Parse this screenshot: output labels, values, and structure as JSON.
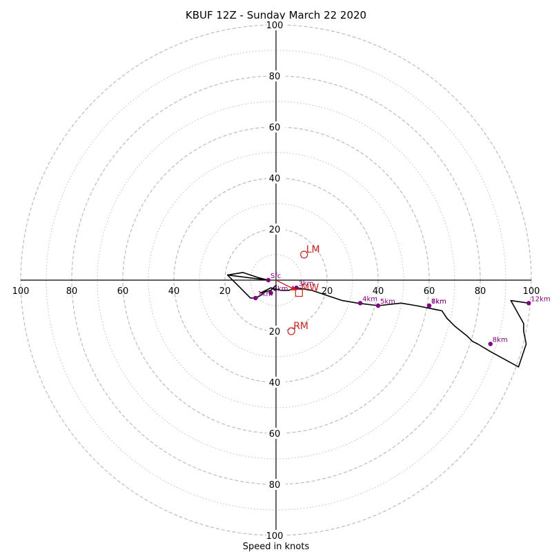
{
  "chart_data": {
    "type": "hodograph",
    "title": "KBUF 12Z - Sunday March 22 2020",
    "xlabel": "Speed in knots",
    "range": [
      -100,
      100
    ],
    "rings_major": [
      20,
      40,
      60,
      80,
      100
    ],
    "rings_minor": [
      10,
      30,
      50,
      70,
      90
    ],
    "tick_labels": {
      "x": [
        "100",
        "80",
        "60",
        "40",
        "20",
        "20",
        "40",
        "60",
        "80",
        "100"
      ],
      "y": [
        "100",
        "80",
        "60",
        "40",
        "20",
        "20",
        "40",
        "60",
        "80",
        "100"
      ]
    },
    "trace": [
      {
        "x": -3,
        "y": 0
      },
      {
        "x": -19,
        "y": 2
      },
      {
        "x": -13,
        "y": 3
      },
      {
        "x": -7,
        "y": 1
      },
      {
        "x": -3,
        "y": 0
      },
      {
        "x": -19,
        "y": 2
      },
      {
        "x": -14,
        "y": -3
      },
      {
        "x": -13,
        "y": -4
      },
      {
        "x": -10,
        "y": -7
      },
      {
        "x": -8,
        "y": -7
      },
      {
        "x": -6,
        "y": -6
      },
      {
        "x": -4,
        "y": -4
      },
      {
        "x": -2,
        "y": -3
      },
      {
        "x": 0,
        "y": -4
      },
      {
        "x": 0,
        "y": -2
      },
      {
        "x": -2,
        "y": -4
      },
      {
        "x": -6,
        "y": -5
      },
      {
        "x": -2,
        "y": -3
      },
      {
        "x": 2,
        "y": -4
      },
      {
        "x": 5,
        "y": -4
      },
      {
        "x": 8,
        "y": -3
      },
      {
        "x": 14,
        "y": -4
      },
      {
        "x": 20,
        "y": -6
      },
      {
        "x": 26,
        "y": -8
      },
      {
        "x": 32,
        "y": -9
      },
      {
        "x": 40,
        "y": -10
      },
      {
        "x": 49,
        "y": -9
      },
      {
        "x": 55,
        "y": -10
      },
      {
        "x": 60,
        "y": -11
      },
      {
        "x": 65,
        "y": -12
      },
      {
        "x": 67,
        "y": -15
      },
      {
        "x": 70,
        "y": -18
      },
      {
        "x": 75,
        "y": -22
      },
      {
        "x": 77,
        "y": -24
      },
      {
        "x": 79,
        "y": -25
      },
      {
        "x": 84,
        "y": -28
      },
      {
        "x": 95,
        "y": -34
      },
      {
        "x": 98,
        "y": -25
      },
      {
        "x": 97,
        "y": -20
      },
      {
        "x": 97,
        "y": -17
      },
      {
        "x": 92,
        "y": -8
      },
      {
        "x": 99,
        "y": -9
      }
    ],
    "height_markers": [
      {
        "label": "Sfc",
        "x": -3,
        "y": 0
      },
      {
        "label": "1km",
        "x": -8,
        "y": -7
      },
      {
        "label": "2km",
        "x": -2,
        "y": -5
      },
      {
        "label": "3km",
        "x": 8,
        "y": -3
      },
      {
        "label": "4km",
        "x": 33,
        "y": -9
      },
      {
        "label": "5km",
        "x": 40,
        "y": -10
      },
      {
        "label": "6km",
        "x": 60,
        "y": -10
      },
      {
        "label": "7km",
        "x": 60,
        "y": -10
      },
      {
        "label": "8km",
        "x": 84,
        "y": -25
      },
      {
        "label": "12km",
        "x": 99,
        "y": -9
      }
    ],
    "motions": [
      {
        "label": "LM",
        "x": 11,
        "y": 10,
        "marker": "circle"
      },
      {
        "label": "MW",
        "x": 9,
        "y": -5,
        "marker": "square"
      },
      {
        "label": "RM",
        "x": 6,
        "y": -20,
        "marker": "circle"
      }
    ],
    "shear_arrow": {
      "from": {
        "x": 0,
        "y": 0
      },
      "to": {
        "x": 8,
        "y": -4
      }
    },
    "colors": {
      "trace": "#000000",
      "markers": "#800080",
      "motions": "#cc2222",
      "grid": "#bbbbbb",
      "axes": "#000000"
    },
    "grid": true
  }
}
